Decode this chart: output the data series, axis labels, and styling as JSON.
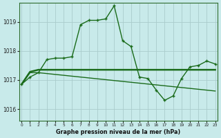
{
  "xlabel": "Graphe pression niveau de la mer (hPa)",
  "bg_color": "#c8eaea",
  "grid_color": "#aacccc",
  "line_color": "#1a6b1a",
  "x_ticks": [
    0,
    1,
    2,
    3,
    4,
    5,
    6,
    7,
    8,
    9,
    10,
    11,
    12,
    13,
    14,
    15,
    16,
    17,
    18,
    19,
    20,
    21,
    22,
    23
  ],
  "ylim": [
    1015.6,
    1019.65
  ],
  "yticks": [
    1016,
    1017,
    1018,
    1019
  ],
  "line1": [
    1016.85,
    1017.1,
    1017.25,
    1017.7,
    1017.75,
    1017.75,
    1017.8,
    1018.9,
    1019.05,
    1019.05,
    1019.1,
    1019.55,
    1018.35,
    1018.15,
    1017.1,
    1017.05,
    1016.65,
    1016.3,
    1016.45,
    1017.05,
    1017.45,
    1017.5,
    1017.65,
    1017.55
  ],
  "line2": [
    1016.85,
    1017.25,
    1017.25,
    1017.22,
    1017.19,
    1017.16,
    1017.13,
    1017.1,
    1017.07,
    1017.04,
    1017.01,
    1016.98,
    1016.95,
    1016.92,
    1016.89,
    1016.86,
    1016.83,
    1016.8,
    1016.77,
    1016.74,
    1016.71,
    1016.68,
    1016.65,
    1016.62
  ],
  "line3": [
    1016.85,
    1017.28,
    1017.35,
    1017.35,
    1017.35,
    1017.35,
    1017.35,
    1017.35,
    1017.35,
    1017.35,
    1017.35,
    1017.35,
    1017.35,
    1017.35,
    1017.35,
    1017.35,
    1017.35,
    1017.35,
    1017.35,
    1017.35,
    1017.35,
    1017.35,
    1017.35,
    1017.35
  ]
}
